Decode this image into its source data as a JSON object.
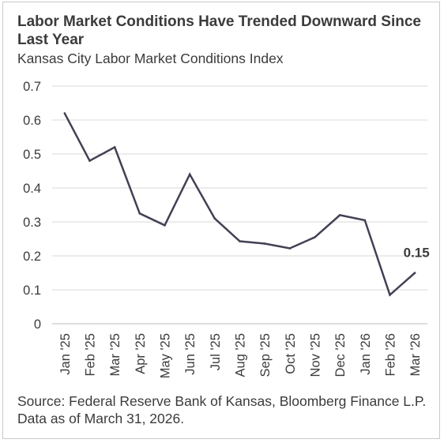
{
  "chart_data": {
    "type": "line",
    "title": "Labor Market Conditions Have Trended Downward Since Last Year",
    "subtitle": "Kansas City Labor Market Conditions Index",
    "source": "Source: Federal Reserve Bank of Kansas, Bloomberg Finance L.P. Data as of March 31, 2026.",
    "xlabel": "",
    "ylabel": "",
    "categories": [
      "Jan '25",
      "Feb '25",
      "Mar '25",
      "Apr '25",
      "May '25",
      "Jun '25",
      "Jul '25",
      "Aug '25",
      "Sep '25",
      "Oct '25",
      "Nov '25",
      "Dec '25",
      "Jan '26",
      "Feb '26",
      "Mar '26"
    ],
    "series": [
      {
        "values": [
          0.62,
          0.48,
          0.52,
          0.325,
          0.29,
          0.44,
          0.31,
          0.243,
          0.236,
          0.222,
          0.255,
          0.32,
          0.305,
          0.085,
          0.15
        ],
        "color": "#444054"
      }
    ],
    "y_ticks": [
      "0",
      "0.1",
      "0.2",
      "0.3",
      "0.4",
      "0.5",
      "0.6",
      "0.7"
    ],
    "ylim": [
      0,
      0.7
    ],
    "grid": true,
    "annotations": [
      {
        "category": "Mar '26",
        "text": "0.15"
      }
    ]
  }
}
